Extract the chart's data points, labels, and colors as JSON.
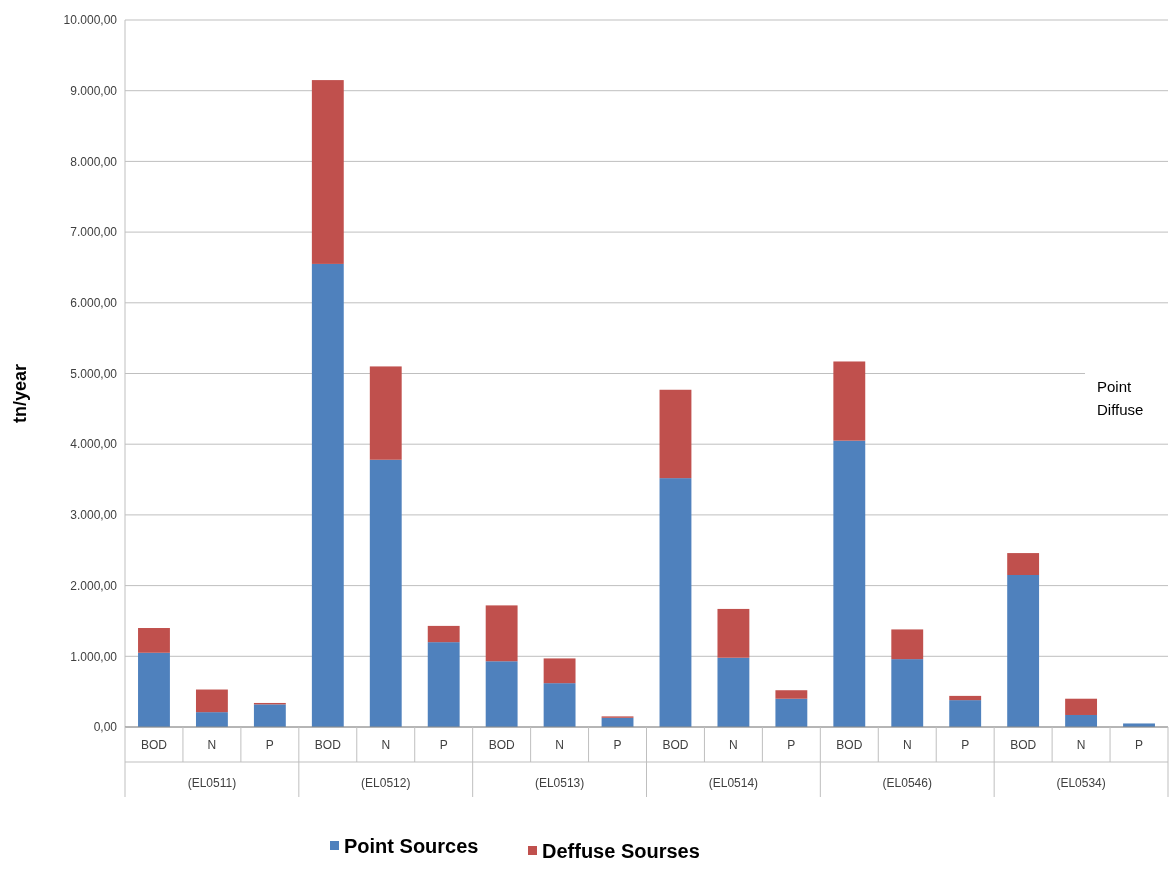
{
  "chart_data": {
    "type": "bar",
    "stacked": true,
    "ylabel": "tn/year",
    "categories": [
      "BOD",
      "N",
      "P",
      "BOD",
      "N",
      "P",
      "BOD",
      "N",
      "P",
      "BOD",
      "N",
      "P",
      "BOD",
      "N",
      "P",
      "BOD",
      "N",
      "P"
    ],
    "series": [
      {
        "name": "Point Sources",
        "color": "#4f81bd",
        "values": [
          1050,
          210,
          320,
          6550,
          3780,
          1200,
          930,
          620,
          130,
          3520,
          980,
          400,
          4050,
          960,
          380,
          2150,
          170,
          50
        ]
      },
      {
        "name": "Deffuse Sourses",
        "color": "#c0504d",
        "values": [
          350,
          320,
          20,
          2600,
          1320,
          230,
          790,
          350,
          20,
          1250,
          690,
          120,
          1120,
          420,
          60,
          310,
          230,
          null
        ]
      }
    ],
    "ylim": [
      0,
      10000
    ],
    "yticks": [
      {
        "value": 0,
        "label": "0,00"
      },
      {
        "value": 1000,
        "label": "1.000,00"
      },
      {
        "value": 2000,
        "label": "2.000,00"
      },
      {
        "value": 3000,
        "label": "3.000,00"
      },
      {
        "value": 4000,
        "label": "4.000,00"
      },
      {
        "value": 5000,
        "label": "5.000,00"
      },
      {
        "value": 6000,
        "label": "6.000,00"
      },
      {
        "value": 7000,
        "label": "7.000,00"
      },
      {
        "value": 8000,
        "label": "8.000,00"
      },
      {
        "value": 9000,
        "label": "9.000,00"
      },
      {
        "value": 10000,
        "label": "10.000,00"
      }
    ],
    "annotations": [
      "(EL0511)",
      "(EL0512)",
      "(EL0513)",
      "(EL0514)",
      "(EL0546)",
      "(EL0534)",
      "Point",
      "Diffuse"
    ],
    "grid": "y",
    "legend": "bottom"
  }
}
